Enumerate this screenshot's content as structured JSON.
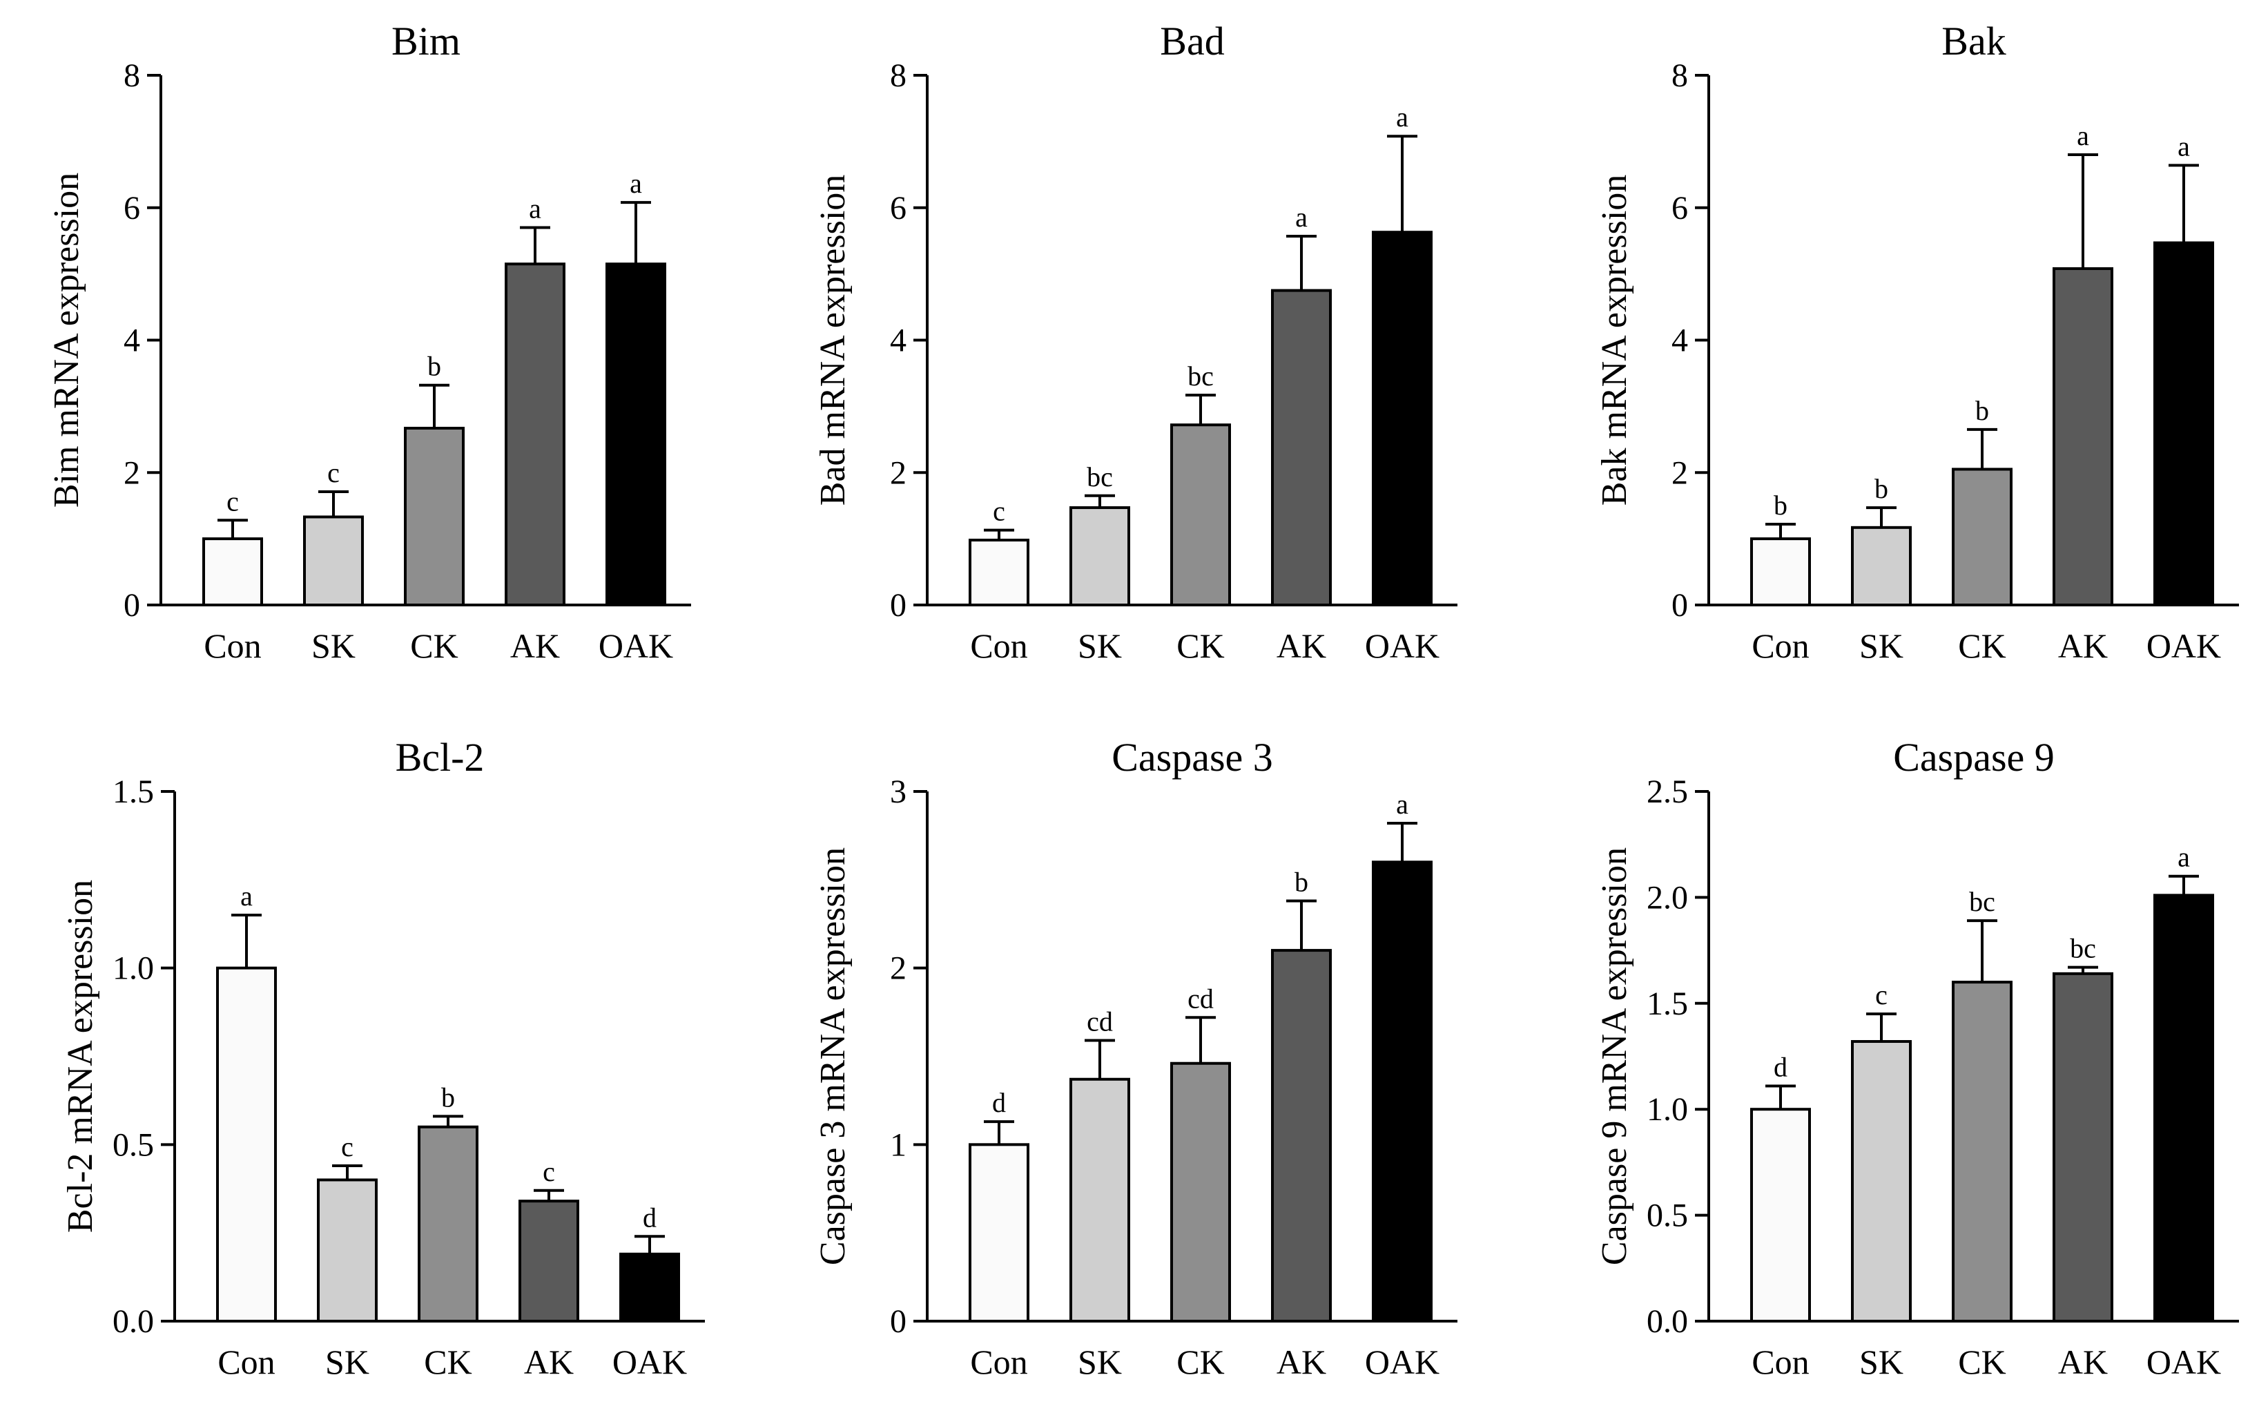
{
  "chart_data": [
    {
      "type": "bar",
      "title": "Bim",
      "ylabel": "Bim mRNA expression",
      "categories": [
        "Con",
        "SK",
        "CK",
        "AK",
        "OAK"
      ],
      "values": [
        1.0,
        1.33,
        2.67,
        5.15,
        5.15
      ],
      "errors": [
        0.28,
        0.38,
        0.65,
        0.55,
        0.93
      ],
      "significance": [
        "c",
        "c",
        "b",
        "a",
        "a"
      ],
      "ylim": [
        0,
        8
      ],
      "yticks": [
        "0",
        "2",
        "4",
        "6",
        "8"
      ],
      "bar_colors": [
        "#fafafa",
        "#cfcfcf",
        "#8e8e8e",
        "#5a5a5a",
        "#000000"
      ]
    },
    {
      "type": "bar",
      "title": "Bad",
      "ylabel": "Bad mRNA expression",
      "categories": [
        "Con",
        "SK",
        "CK",
        "AK",
        "OAK"
      ],
      "values": [
        0.98,
        1.47,
        2.72,
        4.75,
        5.63
      ],
      "errors": [
        0.15,
        0.18,
        0.45,
        0.82,
        1.45
      ],
      "significance": [
        "c",
        "bc",
        "bc",
        "a",
        "a"
      ],
      "ylim": [
        0,
        8
      ],
      "yticks": [
        "0",
        "2",
        "4",
        "6",
        "8"
      ],
      "bar_colors": [
        "#fafafa",
        "#cfcfcf",
        "#8e8e8e",
        "#5a5a5a",
        "#000000"
      ]
    },
    {
      "type": "bar",
      "title": "Bak",
      "ylabel": "Bak mRNA expression",
      "categories": [
        "Con",
        "SK",
        "CK",
        "AK",
        "OAK"
      ],
      "values": [
        1.0,
        1.17,
        2.05,
        5.08,
        5.47
      ],
      "errors": [
        0.22,
        0.3,
        0.6,
        1.72,
        1.17
      ],
      "significance": [
        "b",
        "b",
        "b",
        "a",
        "a"
      ],
      "ylim": [
        0,
        8
      ],
      "yticks": [
        "0",
        "2",
        "4",
        "6",
        "8"
      ],
      "bar_colors": [
        "#fafafa",
        "#cfcfcf",
        "#8e8e8e",
        "#5a5a5a",
        "#000000"
      ]
    },
    {
      "type": "bar",
      "title": "Bcl-2",
      "ylabel": "Bcl-2 mRNA expression",
      "categories": [
        "Con",
        "SK",
        "CK",
        "AK",
        "OAK"
      ],
      "values": [
        1.0,
        0.4,
        0.55,
        0.34,
        0.19
      ],
      "errors": [
        0.15,
        0.04,
        0.03,
        0.03,
        0.05
      ],
      "significance": [
        "a",
        "c",
        "b",
        "c",
        "d"
      ],
      "ylim": [
        0,
        1.5
      ],
      "yticks": [
        "0.0",
        "0.5",
        "1.0",
        "1.5"
      ],
      "bar_colors": [
        "#fafafa",
        "#cfcfcf",
        "#8e8e8e",
        "#5a5a5a",
        "#000000"
      ]
    },
    {
      "type": "bar",
      "title": "Caspase 3",
      "ylabel": "Caspase 3 mRNA expression",
      "categories": [
        "Con",
        "SK",
        "CK",
        "AK",
        "OAK"
      ],
      "values": [
        1.0,
        1.37,
        1.46,
        2.1,
        2.6
      ],
      "errors": [
        0.13,
        0.22,
        0.26,
        0.28,
        0.22
      ],
      "significance": [
        "d",
        "cd",
        "cd",
        "b",
        "a"
      ],
      "ylim": [
        0,
        3
      ],
      "yticks": [
        "0",
        "1",
        "2",
        "3"
      ],
      "bar_colors": [
        "#fafafa",
        "#cfcfcf",
        "#8e8e8e",
        "#5a5a5a",
        "#000000"
      ]
    },
    {
      "type": "bar",
      "title": "Caspase 9",
      "ylabel": "Caspase 9 mRNA expression",
      "categories": [
        "Con",
        "SK",
        "CK",
        "AK",
        "OAK"
      ],
      "values": [
        1.0,
        1.32,
        1.6,
        1.64,
        2.01
      ],
      "errors": [
        0.11,
        0.13,
        0.29,
        0.03,
        0.09
      ],
      "significance": [
        "d",
        "c",
        "bc",
        "bc",
        "a"
      ],
      "ylim": [
        0,
        2.5
      ],
      "yticks": [
        "0.0",
        "0.5",
        "1.0",
        "1.5",
        "2.0",
        "2.5"
      ],
      "bar_colors": [
        "#fafafa",
        "#cfcfcf",
        "#8e8e8e",
        "#5a5a5a",
        "#000000"
      ]
    }
  ]
}
